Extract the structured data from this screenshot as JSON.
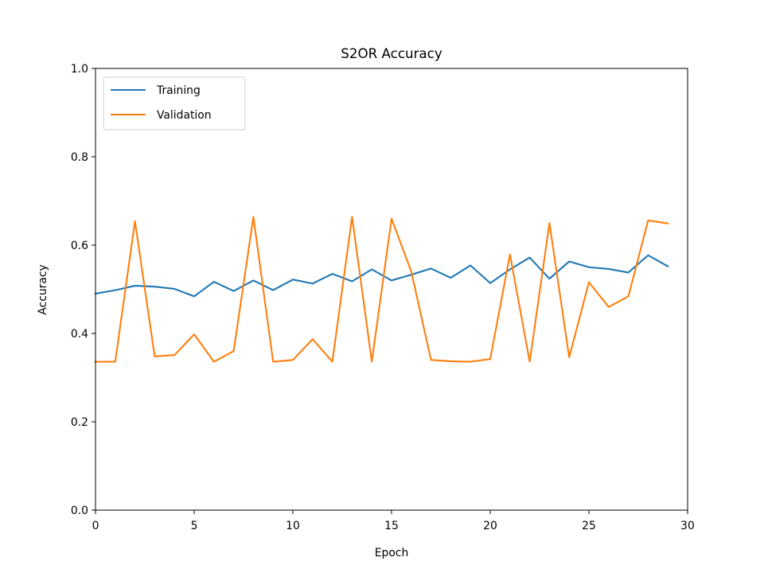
{
  "chart_data": {
    "type": "line",
    "title": "S2OR Accuracy",
    "xlabel": "Epoch",
    "ylabel": "Accuracy",
    "xlim": [
      0,
      30
    ],
    "ylim": [
      0,
      1.0
    ],
    "xticks": [
      0,
      5,
      10,
      15,
      20,
      25,
      30
    ],
    "xtick_labels": [
      "0",
      "5",
      "10",
      "15",
      "20",
      "25",
      "30"
    ],
    "yticks": [
      0.0,
      0.2,
      0.4,
      0.6,
      0.8,
      1.0
    ],
    "ytick_labels": [
      "0.0",
      "0.2",
      "0.4",
      "0.6",
      "0.8",
      "1.0"
    ],
    "grid": false,
    "legend_position": "top-left",
    "x": [
      0,
      1,
      2,
      3,
      4,
      5,
      6,
      7,
      8,
      9,
      10,
      11,
      12,
      13,
      14,
      15,
      16,
      17,
      18,
      19,
      20,
      21,
      22,
      23,
      24,
      25,
      26,
      27,
      28,
      29
    ],
    "series": [
      {
        "name": "Training",
        "color": "#1f77b4",
        "values": [
          0.49,
          0.498,
          0.508,
          0.506,
          0.501,
          0.484,
          0.517,
          0.496,
          0.52,
          0.498,
          0.522,
          0.513,
          0.535,
          0.518,
          0.545,
          0.52,
          0.533,
          0.547,
          0.526,
          0.554,
          0.514,
          0.545,
          0.572,
          0.524,
          0.563,
          0.55,
          0.546,
          0.538,
          0.577,
          0.552
        ]
      },
      {
        "name": "Validation",
        "color": "#ff7f0e",
        "values": [
          0.336,
          0.336,
          0.654,
          0.348,
          0.351,
          0.398,
          0.336,
          0.36,
          0.664,
          0.336,
          0.34,
          0.387,
          0.336,
          0.664,
          0.336,
          0.66,
          0.54,
          0.34,
          0.337,
          0.336,
          0.342,
          0.579,
          0.336,
          0.65,
          0.346,
          0.516,
          0.46,
          0.484,
          0.656,
          0.649
        ]
      }
    ]
  }
}
